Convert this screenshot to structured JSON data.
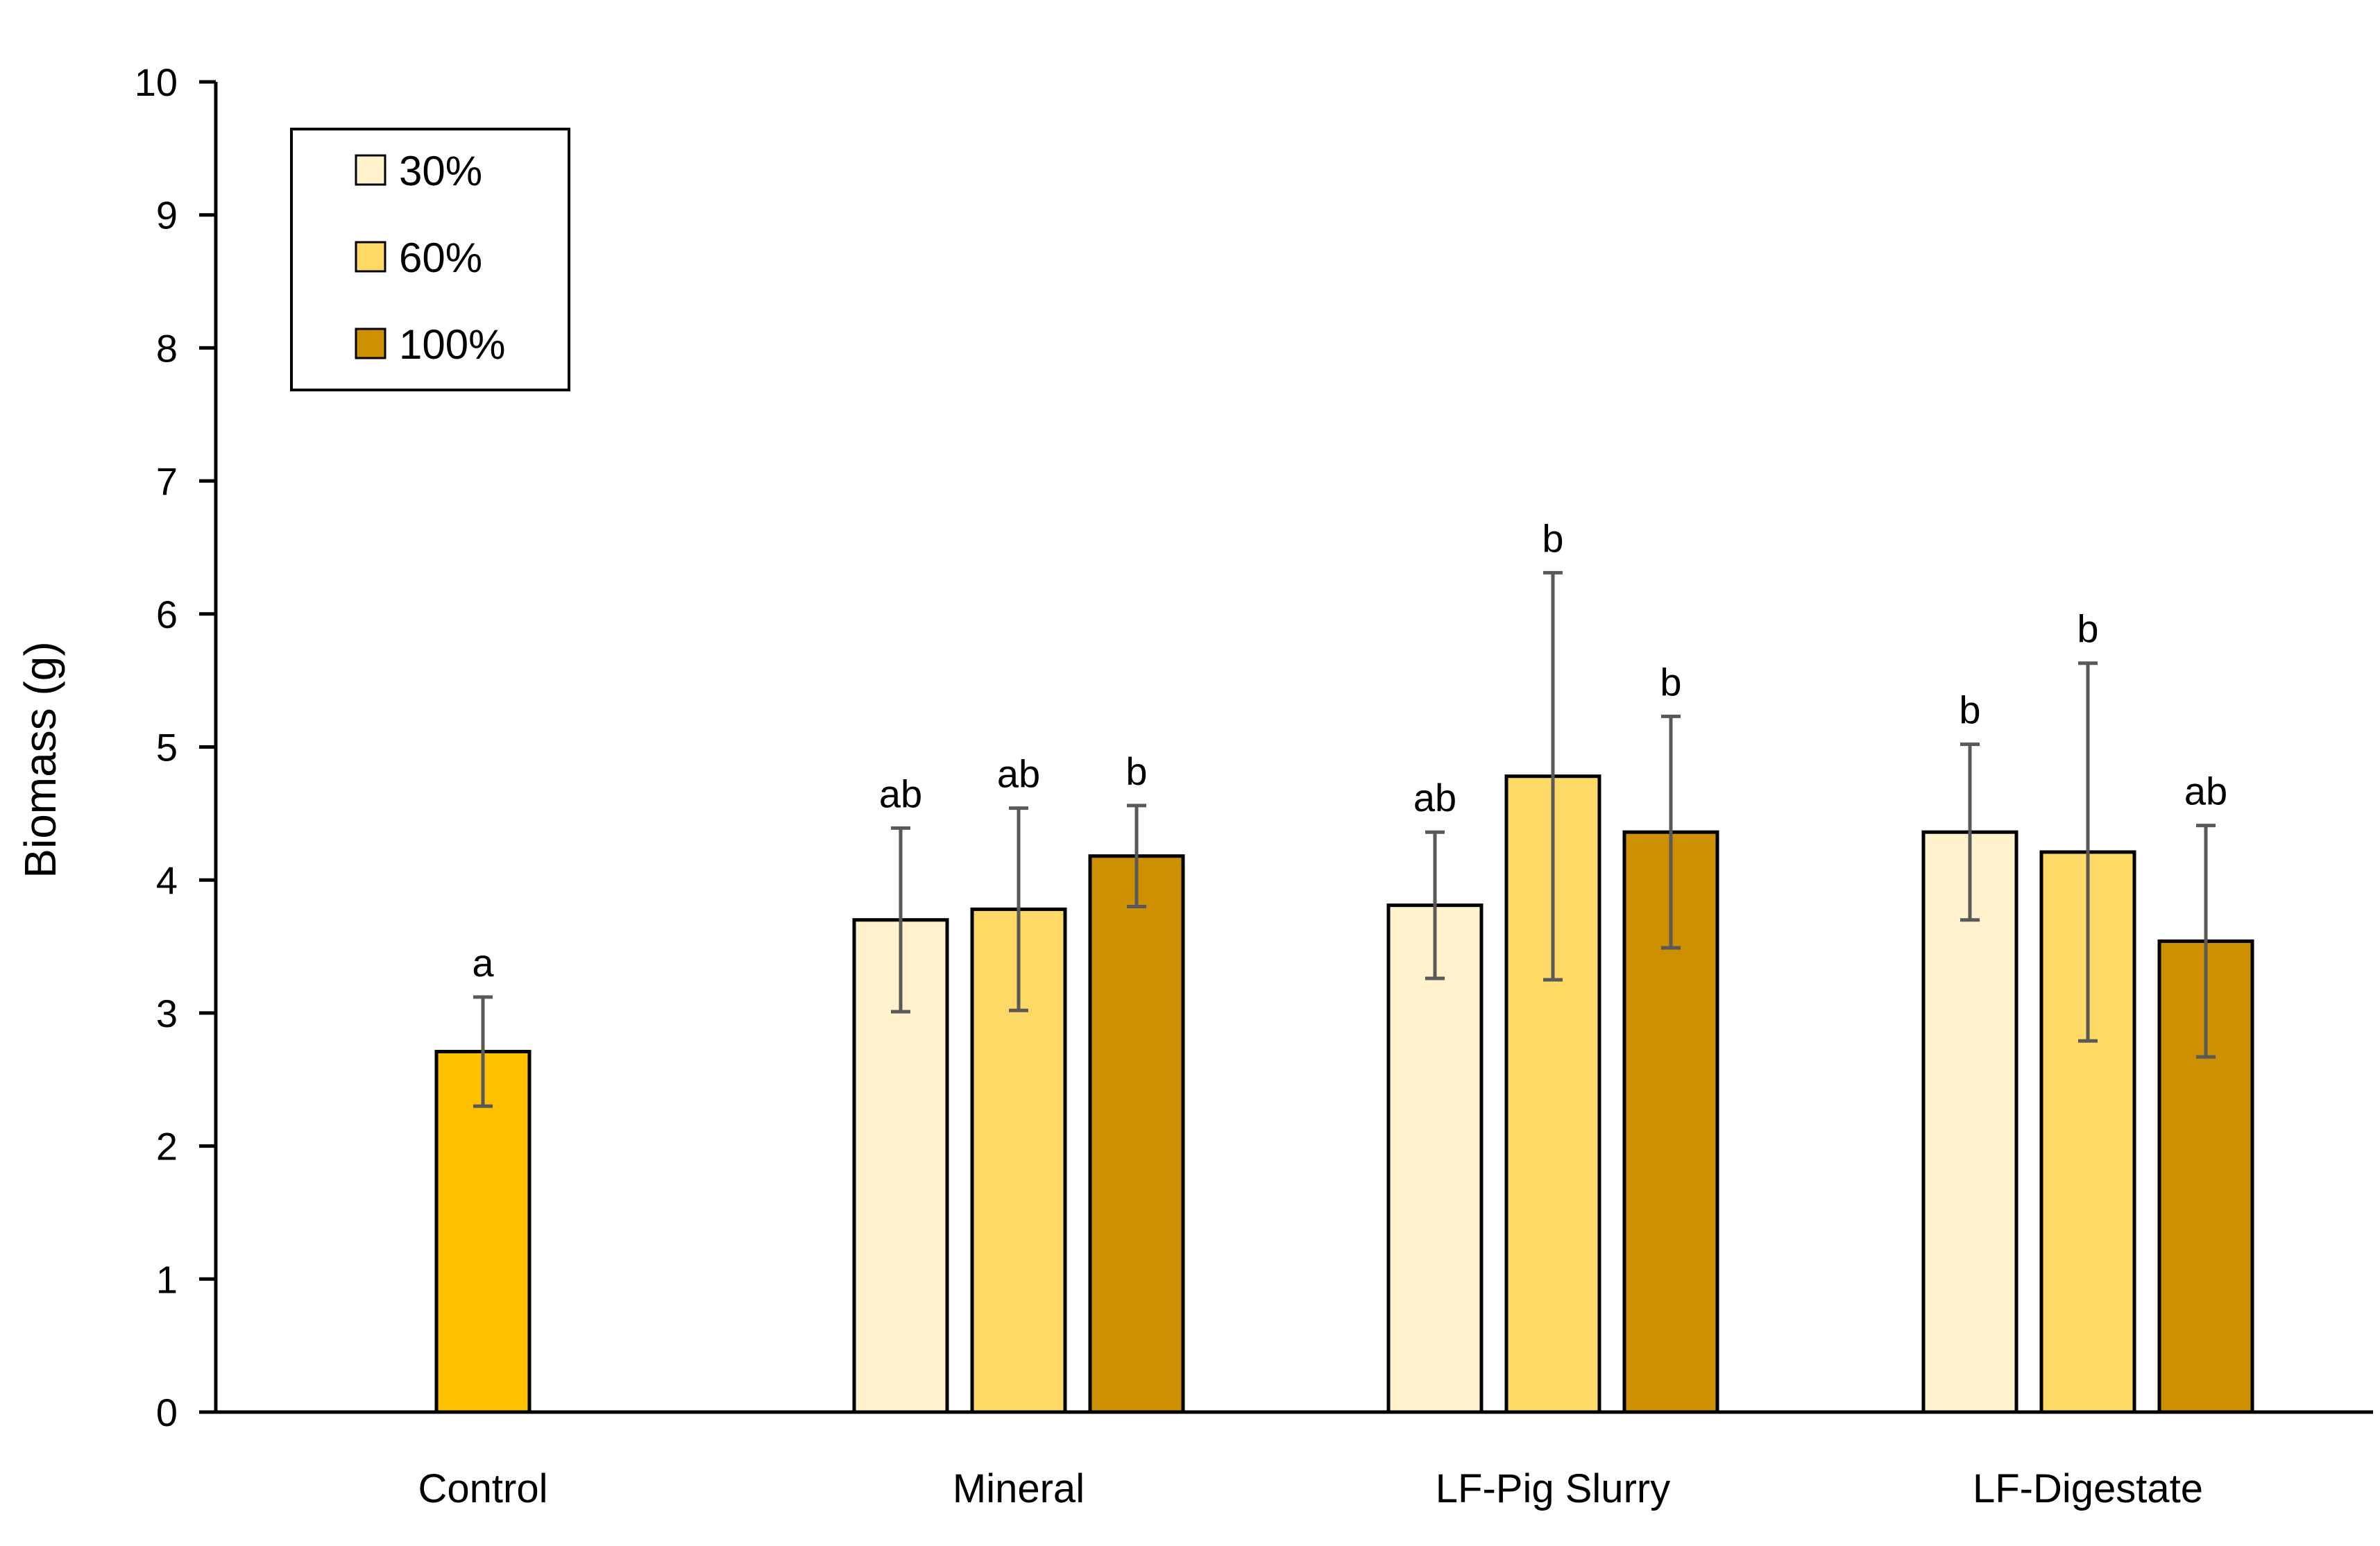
{
  "chart_data": {
    "type": "bar",
    "title": "",
    "xlabel": "",
    "ylabel": "Biomass (g)",
    "ylim": [
      0,
      10
    ],
    "yticks": [
      0,
      1,
      2,
      3,
      4,
      5,
      6,
      7,
      8,
      9,
      10
    ],
    "grid": false,
    "legend_position": "top-left",
    "categories": [
      "Control",
      "Mineral",
      "LF-Pig Slurry",
      "LF-Digestate"
    ],
    "series": [
      {
        "name": "30%",
        "color": "#FFF2CC",
        "values": [
          null,
          3.7,
          3.81,
          4.36
        ],
        "errors": [
          null,
          0.69,
          0.55,
          0.66
        ],
        "letters": [
          null,
          "ab",
          "ab",
          "b"
        ]
      },
      {
        "name": "60%",
        "color": "#FFD966",
        "values": [
          null,
          3.78,
          4.78,
          4.21
        ],
        "errors": [
          null,
          0.76,
          1.53,
          1.42
        ],
        "letters": [
          null,
          "ab",
          "b",
          "b"
        ]
      },
      {
        "name": "100%",
        "color": "#CC9000",
        "values": [
          null,
          4.18,
          4.36,
          3.54
        ],
        "errors": [
          null,
          0.38,
          0.87,
          0.87
        ],
        "letters": [
          null,
          "b",
          "b",
          "ab"
        ]
      }
    ],
    "control": {
      "category": "Control",
      "value": 2.71,
      "error": 0.41,
      "letter": "a",
      "color": "#FFC000"
    }
  }
}
